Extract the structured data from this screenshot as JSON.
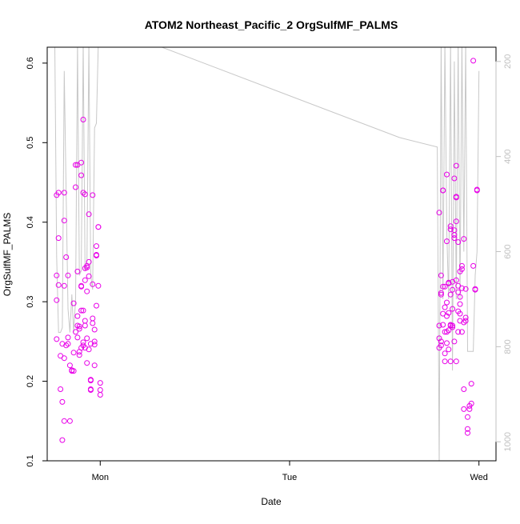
{
  "chart_data": {
    "type": "scatter",
    "title": "ATOM2 Northeast_Pacific_2 OrgSulfMF_PALMS",
    "xlabel": "Date",
    "ylabel": "OrgSulfMF_PALMS",
    "x_ticks": [
      {
        "value": 1.0,
        "label": "Mon"
      },
      {
        "value": 2.0,
        "label": "Tue"
      },
      {
        "value": 3.0,
        "label": "Wed"
      }
    ],
    "xlim": [
      0.72,
      3.09
    ],
    "ylim": [
      0.1,
      0.62
    ],
    "y_ticks": [
      0.1,
      0.2,
      0.3,
      0.4,
      0.5,
      0.6
    ],
    "y_tick_labels": [
      "0.1",
      "0.2",
      "0.3",
      "0.4",
      "0.5",
      "0.6"
    ],
    "right_axis": {
      "ylim": [
        1040,
        170
      ],
      "ticks": [
        200,
        400,
        600,
        800,
        1000
      ],
      "tick_labels": [
        "200",
        "400",
        "600",
        "800",
        "1000"
      ],
      "color": "#c0c0c0"
    },
    "grid": false,
    "series": [
      {
        "color": "#e800e8",
        "marker": "open-circle",
        "x": [
          0.77,
          0.77,
          0.77,
          0.77,
          0.78,
          0.78,
          0.78,
          0.79,
          0.79,
          0.8,
          0.8,
          0.8,
          0.81,
          0.81,
          0.81,
          0.81,
          0.81,
          0.82,
          0.82,
          0.83,
          0.83,
          0.83,
          0.84,
          0.84,
          0.85,
          0.85,
          0.86,
          0.86,
          0.86,
          0.87,
          0.87,
          0.87,
          0.88,
          0.88,
          0.88,
          0.88,
          0.88,
          0.89,
          0.89,
          0.89,
          0.89,
          0.9,
          0.9,
          0.9,
          0.9,
          0.9,
          0.9,
          0.91,
          0.91,
          0.91,
          0.91,
          0.91,
          0.92,
          0.92,
          0.92,
          0.92,
          0.92,
          0.92,
          0.93,
          0.93,
          0.93,
          0.93,
          0.93,
          0.94,
          0.94,
          0.94,
          0.94,
          0.95,
          0.95,
          0.95,
          0.95,
          0.95,
          0.96,
          0.96,
          0.96,
          0.96,
          0.97,
          0.97,
          0.97,
          0.97,
          0.98,
          0.98,
          0.98,
          0.98,
          0.99,
          0.99,
          0.99,
          1.0,
          1.0,
          1.0,
          2.79,
          2.79,
          2.79,
          2.79,
          2.8,
          2.8,
          2.8,
          2.8,
          2.8,
          2.81,
          2.81,
          2.81,
          2.81,
          2.81,
          2.82,
          2.82,
          2.82,
          2.82,
          2.82,
          2.83,
          2.83,
          2.83,
          2.83,
          2.83,
          2.83,
          2.84,
          2.84,
          2.84,
          2.84,
          2.84,
          2.85,
          2.85,
          2.85,
          2.85,
          2.85,
          2.85,
          2.86,
          2.86,
          2.86,
          2.86,
          2.86,
          2.87,
          2.87,
          2.87,
          2.87,
          2.87,
          2.88,
          2.88,
          2.88,
          2.88,
          2.88,
          2.88,
          2.89,
          2.89,
          2.89,
          2.89,
          2.89,
          2.9,
          2.9,
          2.9,
          2.9,
          2.9,
          2.91,
          2.91,
          2.91,
          2.91,
          2.92,
          2.92,
          2.92,
          2.92,
          2.93,
          2.93,
          2.93,
          2.94,
          2.94,
          2.94,
          2.95,
          2.95,
          2.96,
          2.96,
          2.97,
          2.97,
          2.98,
          2.98,
          2.99,
          2.99
        ],
        "y": [
          0.434,
          0.253,
          0.333,
          0.302,
          0.437,
          0.38,
          0.321,
          0.232,
          0.19,
          0.247,
          0.174,
          0.126,
          0.402,
          0.437,
          0.32,
          0.229,
          0.15,
          0.245,
          0.356,
          0.333,
          0.247,
          0.255,
          0.22,
          0.15,
          0.213,
          0.214,
          0.213,
          0.236,
          0.298,
          0.472,
          0.262,
          0.444,
          0.472,
          0.282,
          0.255,
          0.338,
          0.27,
          0.266,
          0.233,
          0.237,
          0.269,
          0.32,
          0.319,
          0.289,
          0.459,
          0.242,
          0.475,
          0.529,
          0.437,
          0.289,
          0.249,
          0.245,
          0.435,
          0.27,
          0.276,
          0.242,
          0.327,
          0.342,
          0.345,
          0.313,
          0.223,
          0.254,
          0.343,
          0.35,
          0.41,
          0.332,
          0.24,
          0.189,
          0.247,
          0.201,
          0.19,
          0.202,
          0.434,
          0.279,
          0.322,
          0.273,
          0.265,
          0.25,
          0.22,
          0.246,
          0.37,
          0.358,
          0.359,
          0.295,
          0.394,
          0.394,
          0.32,
          0.198,
          0.183,
          0.189,
          0.412,
          0.242,
          0.254,
          0.27,
          0.333,
          0.311,
          0.309,
          0.245,
          0.25,
          0.44,
          0.44,
          0.319,
          0.285,
          0.271,
          0.225,
          0.262,
          0.319,
          0.235,
          0.293,
          0.46,
          0.376,
          0.299,
          0.282,
          0.262,
          0.248,
          0.323,
          0.286,
          0.324,
          0.264,
          0.24,
          0.391,
          0.395,
          0.27,
          0.271,
          0.225,
          0.309,
          0.325,
          0.315,
          0.268,
          0.291,
          0.27,
          0.38,
          0.39,
          0.455,
          0.384,
          0.25,
          0.471,
          0.432,
          0.431,
          0.401,
          0.225,
          0.327,
          0.375,
          0.32,
          0.312,
          0.288,
          0.262,
          0.306,
          0.297,
          0.276,
          0.285,
          0.338,
          0.341,
          0.345,
          0.317,
          0.262,
          0.379,
          0.274,
          0.19,
          0.165,
          0.316,
          0.276,
          0.28,
          0.135,
          0.14,
          0.155,
          0.165,
          0.169,
          0.172,
          0.197,
          0.603,
          0.345,
          0.315,
          0.316,
          0.44,
          0.441
        ],
        "y_axis": "left"
      },
      {
        "color": "#c8c8c8",
        "marker": "line",
        "x": [
          0.75,
          0.76,
          0.77,
          0.78,
          0.79,
          0.8,
          0.81,
          0.82,
          0.83,
          0.84,
          0.85,
          0.86,
          0.87,
          0.88,
          0.89,
          0.9,
          0.91,
          0.92,
          0.93,
          0.94,
          0.95,
          0.96,
          0.97,
          0.98,
          0.99,
          1.0,
          1.26,
          1.92,
          2.58,
          2.78,
          2.79,
          2.8,
          2.81,
          2.82,
          2.83,
          2.84,
          2.85,
          2.86,
          2.87,
          2.88,
          2.89,
          2.9,
          2.91,
          2.92,
          2.93,
          2.94,
          2.95,
          2.96,
          2.97,
          2.98,
          2.99,
          3.0
        ],
        "y": [
          160,
          160,
          610,
          770,
          770,
          760,
          220,
          480,
          720,
          770,
          690,
          770,
          700,
          160,
          650,
          640,
          160,
          640,
          620,
          160,
          650,
          680,
          340,
          330,
          160,
          160,
          160,
          260,
          360,
          380,
          1050,
          160,
          700,
          160,
          560,
          700,
          160,
          850,
          200,
          700,
          160,
          700,
          160,
          600,
          160,
          810,
          810,
          810,
          810,
          650,
          600,
          220
        ],
        "y_axis": "right"
      }
    ]
  }
}
